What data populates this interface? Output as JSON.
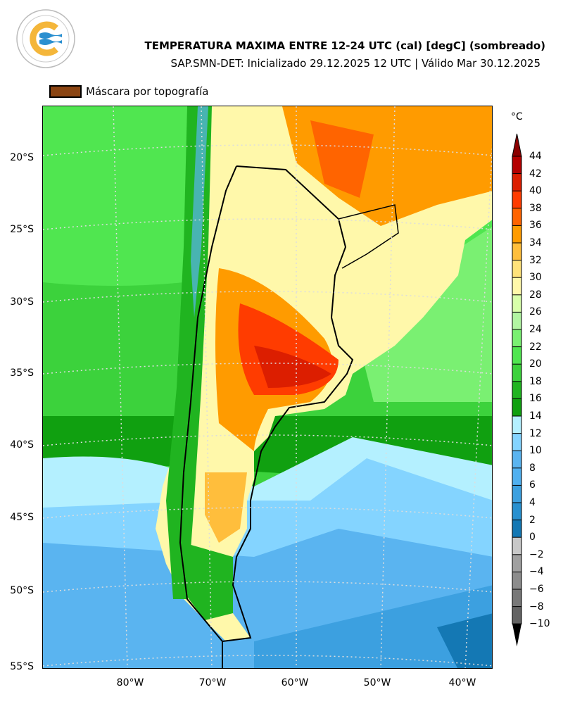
{
  "logo": {
    "text_top": "SERVICIO METEOROLÓGICO NACIONAL",
    "text_bottom": "ARGENTINA"
  },
  "header": {
    "title": "TEMPERATURA MAXIMA ENTRE 12-24 UTC (cal) [degC] (sombreado)",
    "subtitle": "SAP.SMN-DET: Inicializado 29.12.2025 12 UTC | Válido Mar 30.12.2025"
  },
  "legend": {
    "label": "Máscara por topografía",
    "color": "#8b4513"
  },
  "axes": {
    "lat_labels": [
      "20°S",
      "25°S",
      "30°S",
      "35°S",
      "40°S",
      "45°S",
      "50°S",
      "55°S"
    ],
    "lon_labels": [
      "80°W",
      "70°W",
      "60°W",
      "50°W",
      "40°W"
    ]
  },
  "colorbar": {
    "unit": "°C",
    "ticks": [
      "44",
      "42",
      "40",
      "38",
      "36",
      "34",
      "32",
      "30",
      "28",
      "26",
      "24",
      "22",
      "20",
      "18",
      "16",
      "14",
      "12",
      "10",
      "8",
      "6",
      "4",
      "2",
      "0",
      "−2",
      "−4",
      "−6",
      "−8",
      "−10"
    ],
    "colors": [
      "#b40000",
      "#dc1e00",
      "#ff3c00",
      "#ff6400",
      "#ff9b00",
      "#ffbe3c",
      "#ffe27a",
      "#fff8aa",
      "#d8ffaa",
      "#b2f5a2",
      "#7af072",
      "#50e650",
      "#3cd23c",
      "#20b420",
      "#10a010",
      "#b4f0ff",
      "#84d4ff",
      "#5ab4f0",
      "#50b0f0",
      "#3ca0e0",
      "#2890d0",
      "#1478b4",
      "#c8c8c8",
      "#a0a0a0",
      "#8c8c8c",
      "#787878",
      "#646464"
    ],
    "top_extend_color": "#8b0000",
    "bottom_extend_color": "#000000"
  }
}
